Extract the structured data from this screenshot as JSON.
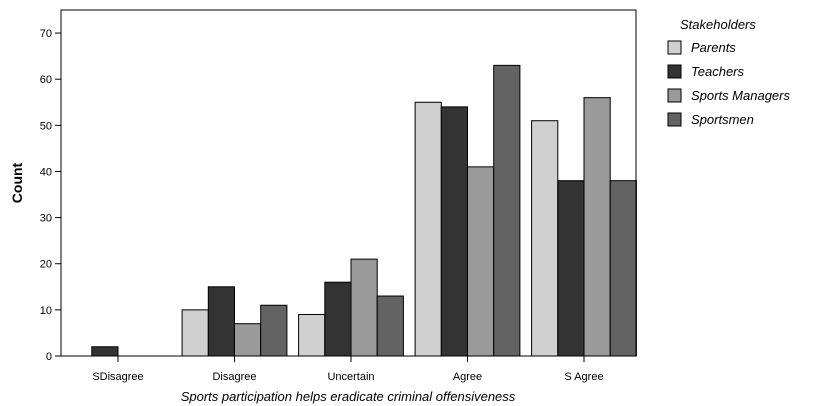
{
  "chart_data": {
    "type": "bar",
    "xlabel": "Sports participation helps eradicate criminal offensiveness",
    "ylabel": "Count",
    "ylim": [
      0,
      75
    ],
    "yticks": [
      0,
      10,
      20,
      30,
      40,
      50,
      60,
      70
    ],
    "grid": false,
    "legend_title": "Stakeholders",
    "legend_position": "right",
    "categories": [
      "SDisagree",
      "Disagree",
      "Uncertain",
      "Agree",
      "S Agree"
    ],
    "series": [
      {
        "name": "Parents",
        "color": "#d0d0d0",
        "values": [
          0,
          10,
          9,
          55,
          51
        ]
      },
      {
        "name": "Teachers",
        "color": "#333333",
        "values": [
          2,
          15,
          16,
          54,
          38
        ]
      },
      {
        "name": "Sports Managers",
        "color": "#9a9a9a",
        "values": [
          0,
          7,
          21,
          41,
          56
        ]
      },
      {
        "name": "Sportsmen",
        "color": "#636363",
        "values": [
          0,
          11,
          13,
          63,
          38
        ]
      }
    ]
  }
}
